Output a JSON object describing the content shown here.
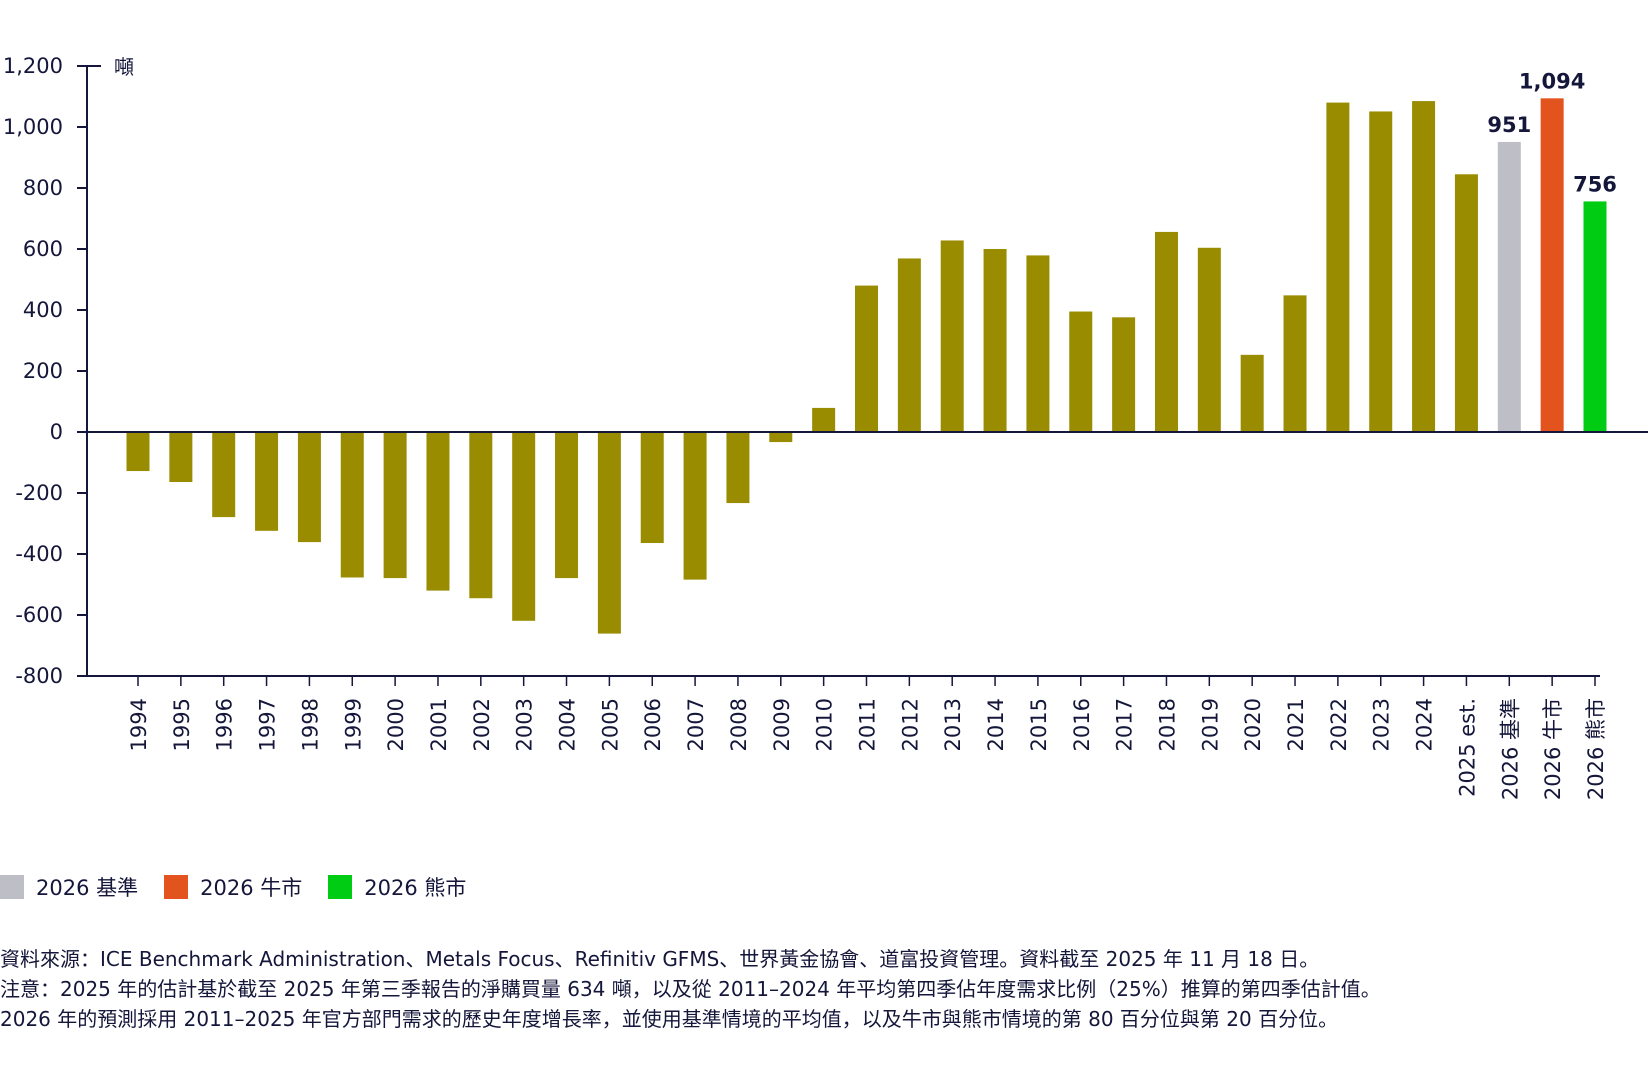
{
  "chart_data": {
    "type": "bar",
    "unit_label": "噸",
    "categories": [
      "1994",
      "1995",
      "1996",
      "1997",
      "1998",
      "1999",
      "2000",
      "2001",
      "2002",
      "2003",
      "2004",
      "2005",
      "2006",
      "2007",
      "2008",
      "2009",
      "2010",
      "2011",
      "2012",
      "2013",
      "2014",
      "2015",
      "2016",
      "2017",
      "2018",
      "2019",
      "2020",
      "2021",
      "2022",
      "2023",
      "2024",
      "2025 est.",
      "2026 基準",
      "2026 牛市",
      "2026 熊市"
    ],
    "values": [
      -128,
      -164,
      -279,
      -324,
      -361,
      -477,
      -479,
      -520,
      -545,
      -619,
      -479,
      -661,
      -364,
      -484,
      -233,
      -33,
      79,
      480,
      569,
      628,
      600,
      579,
      395,
      376,
      656,
      604,
      253,
      448,
      1080,
      1051,
      1085,
      845,
      951,
      1094,
      756
    ],
    "colors": {
      "default": "#9a8c00",
      "base": "#bdbec6",
      "bull": "#e2531d",
      "bear": "#00cc14",
      "axis": "#14163a"
    },
    "series_key": [
      "default",
      "default",
      "default",
      "default",
      "default",
      "default",
      "default",
      "default",
      "default",
      "default",
      "default",
      "default",
      "default",
      "default",
      "default",
      "default",
      "default",
      "default",
      "default",
      "default",
      "default",
      "default",
      "default",
      "default",
      "default",
      "default",
      "default",
      "default",
      "default",
      "default",
      "default",
      "default",
      "base",
      "bull",
      "bear"
    ],
    "data_labels": {
      "32": "951",
      "33": "1,094",
      "34": "756"
    },
    "yticks": [
      1200,
      1000,
      800,
      600,
      400,
      200,
      0,
      -200,
      -400,
      -600,
      -800
    ],
    "ytick_labels": [
      "1,200",
      "1,000",
      "800",
      "600",
      "400",
      "200",
      "0",
      "-200",
      "-400",
      "-600",
      "-800"
    ],
    "ylim": [
      -800,
      1200
    ],
    "grid": false,
    "legend": [
      {
        "label": "2026 基準",
        "color": "#bdbec6"
      },
      {
        "label": "2026 牛市",
        "color": "#e2531d"
      },
      {
        "label": "2026 熊市",
        "color": "#00cc14"
      }
    ],
    "legend_position": "bottom-left"
  },
  "notes": {
    "source": "資料來源：ICE Benchmark Administration、Metals Focus、Refinitiv GFMS、世界黃金協會、道富投資管理。資料截至 2025 年 11 月 18 日。",
    "note1": "注意：2025 年的估計基於截至 2025 年第三季報告的淨購買量 634 噸，以及從 2011–2024 年平均第四季佔年度需求比例（25%）推算的第四季估計值。",
    "note2": "2026 年的預測採用 2011–2025 年官方部門需求的歷史年度增長率，並使用基準情境的平均值，以及牛市與熊市情境的第 80 百分位與第 20 百分位。"
  }
}
